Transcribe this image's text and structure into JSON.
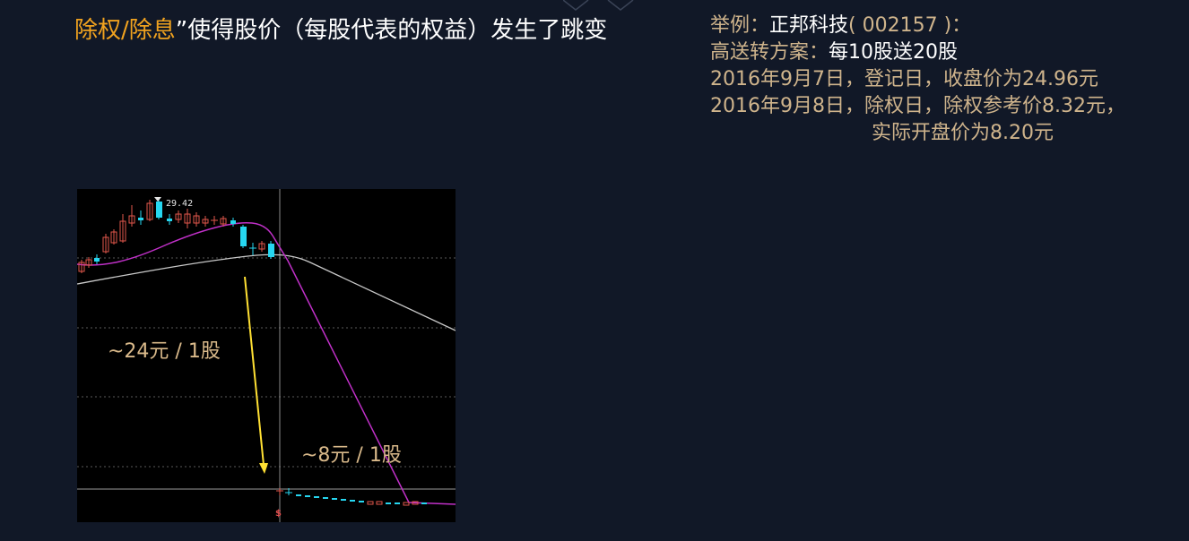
{
  "title": {
    "highlight": "除权/除息",
    "quote": "”",
    "rest": "使得股价（每股代表的权益）发生了跳变"
  },
  "info": {
    "example_label": "举例：",
    "company": "正邦科技",
    "code": "( 002157 )：",
    "plan_label": "高送转方案：",
    "plan_value": "每10股送20股",
    "line3": "2016年9月7日，登记日，收盘价为24.96元",
    "line4": "2016年9月8日，除权日，除权参考价8.32元，",
    "line5": "实际开盘价为8.20元"
  },
  "chart": {
    "peak_label": "29.42",
    "annotation_before": "~24元 / 1股",
    "annotation_after": "~8元 / 1股",
    "marker": "$",
    "colors": {
      "up": "#e2574c",
      "down": "#26d6f0",
      "ma_fast": "#c030c8",
      "ma_slow": "#c8c8c8",
      "arrow": "#ffe033",
      "grid": "#5a5a5a"
    }
  }
}
